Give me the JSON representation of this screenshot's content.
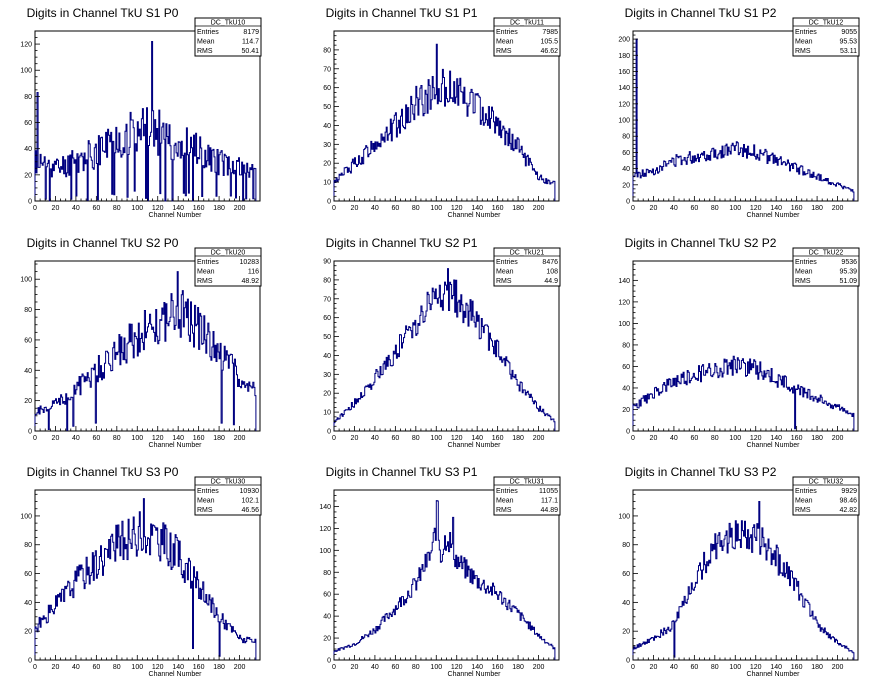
{
  "chart_data": [
    {
      "type": "histogram",
      "title": "Digits in Channel TkU S1 P0",
      "stats": {
        "name": "DC_TkU10",
        "entries": "8179",
        "mean": "114.7",
        "rms": "50.41"
      },
      "xlabel": "Channel Number",
      "xlim": [
        0,
        220
      ],
      "ylim": [
        0,
        130
      ],
      "xticks": [
        0,
        20,
        40,
        60,
        80,
        100,
        120,
        140,
        160,
        180,
        200
      ],
      "yticks": [
        0,
        20,
        40,
        60,
        80,
        100,
        120
      ],
      "profile": [
        [
          0,
          30
        ],
        [
          20,
          25
        ],
        [
          40,
          30
        ],
        [
          60,
          38
        ],
        [
          80,
          48
        ],
        [
          100,
          55
        ],
        [
          120,
          52
        ],
        [
          140,
          46
        ],
        [
          160,
          38
        ],
        [
          180,
          30
        ],
        [
          200,
          25
        ],
        [
          216,
          22
        ]
      ],
      "seed": 11,
      "noise": 0.35,
      "dips": 0.1,
      "spikes": [
        [
          114,
          122
        ],
        [
          2,
          83
        ]
      ]
    },
    {
      "type": "histogram",
      "title": "Digits in Channel TkU S1 P1",
      "stats": {
        "name": "DC_TkU11",
        "entries": "7985",
        "mean": "105.5",
        "rms": "46.62"
      },
      "xlabel": "Channel Number",
      "xlim": [
        0,
        220
      ],
      "ylim": [
        0,
        90
      ],
      "xticks": [
        0,
        20,
        40,
        60,
        80,
        100,
        120,
        140,
        160,
        180,
        200
      ],
      "yticks": [
        0,
        10,
        20,
        30,
        40,
        50,
        60,
        70,
        80
      ],
      "profile": [
        [
          0,
          10
        ],
        [
          20,
          20
        ],
        [
          40,
          30
        ],
        [
          60,
          40
        ],
        [
          80,
          52
        ],
        [
          100,
          60
        ],
        [
          120,
          58
        ],
        [
          140,
          50
        ],
        [
          160,
          40
        ],
        [
          180,
          28
        ],
        [
          200,
          12
        ],
        [
          216,
          10
        ]
      ],
      "seed": 12,
      "noise": 0.18,
      "dips": 0.01,
      "spikes": [
        [
          100,
          83
        ]
      ]
    },
    {
      "type": "histogram",
      "title": "Digits in Channel TkU S1 P2",
      "stats": {
        "name": "DC_TkU12",
        "entries": "9055",
        "mean": "95.53",
        "rms": "53.11"
      },
      "xlabel": "Channel Number",
      "xlim": [
        0,
        220
      ],
      "ylim": [
        0,
        210
      ],
      "xticks": [
        0,
        20,
        40,
        60,
        80,
        100,
        120,
        140,
        160,
        180,
        200
      ],
      "yticks": [
        0,
        20,
        40,
        60,
        80,
        100,
        120,
        140,
        160,
        180,
        200
      ],
      "profile": [
        [
          0,
          30
        ],
        [
          20,
          38
        ],
        [
          40,
          50
        ],
        [
          60,
          55
        ],
        [
          80,
          60
        ],
        [
          100,
          65
        ],
        [
          120,
          60
        ],
        [
          140,
          50
        ],
        [
          160,
          40
        ],
        [
          180,
          30
        ],
        [
          200,
          20
        ],
        [
          216,
          12
        ]
      ],
      "seed": 13,
      "noise": 0.15,
      "dips": 0.0,
      "spikes": [
        [
          3,
          200
        ]
      ]
    },
    {
      "type": "histogram",
      "title": "Digits in Channel TkU S2 P0",
      "stats": {
        "name": "DC_TkU20",
        "entries": "10283",
        "mean": "116",
        "rms": "48.92"
      },
      "xlabel": "Channel Number",
      "xlim": [
        0,
        220
      ],
      "ylim": [
        0,
        112
      ],
      "xticks": [
        0,
        20,
        40,
        60,
        80,
        100,
        120,
        140,
        160,
        180,
        200
      ],
      "yticks": [
        0,
        20,
        40,
        60,
        80,
        100
      ],
      "profile": [
        [
          0,
          12
        ],
        [
          20,
          18
        ],
        [
          40,
          28
        ],
        [
          60,
          40
        ],
        [
          80,
          52
        ],
        [
          100,
          62
        ],
        [
          120,
          72
        ],
        [
          140,
          78
        ],
        [
          160,
          68
        ],
        [
          180,
          52
        ],
        [
          200,
          35
        ],
        [
          216,
          25
        ]
      ],
      "seed": 21,
      "noise": 0.22,
      "dips": 0.03,
      "spikes": [
        [
          139,
          105
        ]
      ]
    },
    {
      "type": "histogram",
      "title": "Digits in Channel TkU S2 P1",
      "stats": {
        "name": "DC_TkU21",
        "entries": "8476",
        "mean": "108",
        "rms": "44.9"
      },
      "xlabel": "Channel Number",
      "xlim": [
        0,
        220
      ],
      "ylim": [
        0,
        90
      ],
      "xticks": [
        0,
        20,
        40,
        60,
        80,
        100,
        120,
        140,
        160,
        180,
        200
      ],
      "yticks": [
        0,
        10,
        20,
        30,
        40,
        50,
        60,
        70,
        80,
        90
      ],
      "profile": [
        [
          0,
          5
        ],
        [
          20,
          15
        ],
        [
          40,
          28
        ],
        [
          60,
          42
        ],
        [
          80,
          58
        ],
        [
          100,
          72
        ],
        [
          120,
          70
        ],
        [
          140,
          58
        ],
        [
          160,
          42
        ],
        [
          180,
          25
        ],
        [
          200,
          12
        ],
        [
          216,
          5
        ]
      ],
      "seed": 22,
      "noise": 0.14,
      "dips": 0.0,
      "spikes": [
        [
          111,
          86
        ]
      ]
    },
    {
      "type": "histogram",
      "title": "Digits in Channel TkU S2 P2",
      "stats": {
        "name": "DC_TkU22",
        "entries": "9536",
        "mean": "95.39",
        "rms": "51.09"
      },
      "xlabel": "Channel Number",
      "xlim": [
        0,
        220
      ],
      "ylim": [
        0,
        158
      ],
      "xticks": [
        0,
        20,
        40,
        60,
        80,
        100,
        120,
        140,
        160,
        180,
        200
      ],
      "yticks": [
        0,
        20,
        40,
        60,
        80,
        100,
        120,
        140
      ],
      "profile": [
        [
          0,
          22
        ],
        [
          20,
          35
        ],
        [
          40,
          45
        ],
        [
          60,
          52
        ],
        [
          80,
          58
        ],
        [
          100,
          62
        ],
        [
          120,
          58
        ],
        [
          140,
          48
        ],
        [
          160,
          40
        ],
        [
          180,
          30
        ],
        [
          200,
          22
        ],
        [
          216,
          15
        ]
      ],
      "seed": 23,
      "noise": 0.16,
      "dips": 0.0,
      "spikes": [
        [
          158,
          2
        ]
      ]
    },
    {
      "type": "histogram",
      "title": "Digits in Channel TkU S3 P0",
      "stats": {
        "name": "DC_TkU30",
        "entries": "10930",
        "mean": "102.1",
        "rms": "46.56"
      },
      "xlabel": "Channel Number",
      "xlim": [
        0,
        220
      ],
      "ylim": [
        0,
        118
      ],
      "xticks": [
        0,
        20,
        40,
        60,
        80,
        100,
        120,
        140,
        160,
        180,
        200
      ],
      "yticks": [
        0,
        20,
        40,
        60,
        80,
        100
      ],
      "profile": [
        [
          0,
          22
        ],
        [
          20,
          38
        ],
        [
          40,
          55
        ],
        [
          60,
          68
        ],
        [
          80,
          80
        ],
        [
          100,
          88
        ],
        [
          120,
          85
        ],
        [
          140,
          72
        ],
        [
          160,
          50
        ],
        [
          180,
          30
        ],
        [
          200,
          15
        ],
        [
          216,
          12
        ]
      ],
      "seed": 31,
      "noise": 0.18,
      "dips": 0.02,
      "spikes": [
        [
          106,
          112
        ]
      ]
    },
    {
      "type": "histogram",
      "title": "Digits in Channel TkU S3 P1",
      "stats": {
        "name": "DC_TkU31",
        "entries": "11055",
        "mean": "117.1",
        "rms": "44.89"
      },
      "xlabel": "Channel Number",
      "xlim": [
        0,
        220
      ],
      "ylim": [
        0,
        155
      ],
      "xticks": [
        0,
        20,
        40,
        60,
        80,
        100,
        120,
        140,
        160,
        180,
        200
      ],
      "yticks": [
        0,
        20,
        40,
        60,
        80,
        100,
        120,
        140
      ],
      "profile": [
        [
          0,
          8
        ],
        [
          20,
          15
        ],
        [
          40,
          28
        ],
        [
          60,
          48
        ],
        [
          80,
          70
        ],
        [
          96,
          100
        ],
        [
          100,
          130
        ],
        [
          104,
          95
        ],
        [
          110,
          115
        ],
        [
          120,
          90
        ],
        [
          140,
          72
        ],
        [
          160,
          60
        ],
        [
          180,
          42
        ],
        [
          200,
          22
        ],
        [
          216,
          10
        ]
      ],
      "seed": 32,
      "noise": 0.12,
      "dips": 0.0,
      "spikes": [
        [
          101,
          145
        ],
        [
          116,
          130
        ]
      ]
    },
    {
      "type": "histogram",
      "title": "Digits in Channel TkU S3 P2",
      "stats": {
        "name": "DC_TkU32",
        "entries": "9929",
        "mean": "98.46",
        "rms": "42.82"
      },
      "xlabel": "Channel Number",
      "xlim": [
        0,
        220
      ],
      "ylim": [
        0,
        118
      ],
      "xticks": [
        0,
        20,
        40,
        60,
        80,
        100,
        120,
        140,
        160,
        180,
        200
      ],
      "yticks": [
        0,
        20,
        40,
        60,
        80,
        100
      ],
      "profile": [
        [
          0,
          8
        ],
        [
          20,
          15
        ],
        [
          40,
          25
        ],
        [
          60,
          55
        ],
        [
          80,
          80
        ],
        [
          100,
          88
        ],
        [
          120,
          85
        ],
        [
          140,
          70
        ],
        [
          160,
          50
        ],
        [
          180,
          25
        ],
        [
          200,
          12
        ],
        [
          216,
          5
        ]
      ],
      "seed": 33,
      "noise": 0.14,
      "dips": 0.0,
      "spikes": [
        [
          123,
          110
        ],
        [
          40,
          2
        ]
      ]
    }
  ],
  "stats_labels": {
    "entries": "Entries",
    "mean": "Mean",
    "rms": "RMS"
  },
  "colors": {
    "line": "#000080",
    "axis": "#000000",
    "background": "#ffffff"
  }
}
